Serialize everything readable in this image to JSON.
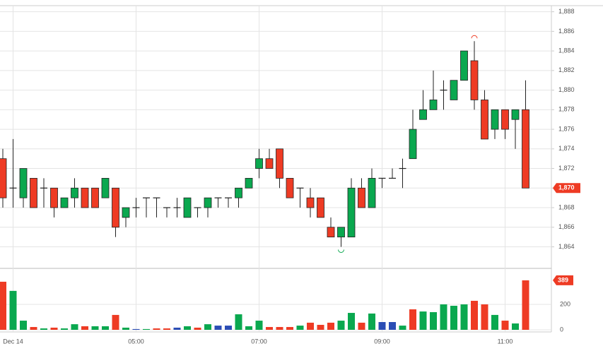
{
  "chart_data": {
    "type": "candlestick",
    "x": [
      null,
      "Dec 14",
      null,
      null,
      null,
      null,
      null,
      null,
      null,
      null,
      null,
      null,
      null,
      "05:00",
      null,
      null,
      null,
      null,
      null,
      null,
      null,
      null,
      null,
      null,
      null,
      "07:00",
      null,
      null,
      null,
      null,
      null,
      null,
      null,
      null,
      null,
      null,
      null,
      "09:00",
      null,
      null,
      null,
      null,
      null,
      null,
      null,
      null,
      null,
      null,
      null,
      "11:00",
      null,
      null
    ],
    "open": [
      1873,
      1870,
      1869,
      1871,
      1870,
      1870,
      1868,
      1869,
      1870,
      1870,
      1869,
      1870,
      1867,
      1868,
      1869,
      1869,
      1868,
      1868,
      1867,
      1868,
      1868,
      1869,
      1869,
      1869,
      1870,
      1872,
      1873,
      1874,
      1871,
      1870,
      1869,
      1869,
      1866,
      1865,
      1865,
      1870,
      1868,
      1871,
      1871,
      1872,
      1873,
      1877,
      1878,
      1880,
      1879,
      1881,
      1883,
      1879,
      1876,
      1878,
      1877,
      1878
    ],
    "high": [
      1874,
      1875,
      1872,
      1871,
      1871,
      1870,
      1869,
      1871,
      1870,
      1870,
      1871,
      1870,
      1868,
      1869,
      1869,
      1869,
      1868,
      1869,
      1869,
      1868,
      1869,
      1869,
      1869,
      1870,
      1871,
      1874,
      1874,
      1874,
      1871,
      1870,
      1870,
      1869,
      1867,
      1866,
      1871,
      1871,
      1872,
      1871,
      1872,
      1873,
      1878,
      1880,
      1882,
      1881,
      1881,
      1884,
      1885,
      1880,
      1878,
      1878,
      1878,
      1881
    ],
    "low": [
      1868,
      1868,
      1868,
      1868,
      1868,
      1867,
      1868,
      1868,
      1868,
      1868,
      1869,
      1865,
      1866,
      1867,
      1867,
      1867,
      1867,
      1867,
      1867,
      1867,
      1867,
      1868,
      1868,
      1868,
      1870,
      1871,
      1872,
      1870,
      1869,
      1868,
      1867,
      1867,
      1865,
      1864,
      1865,
      1868,
      1868,
      1870,
      1871,
      1870,
      1873,
      1877,
      1878,
      1878,
      1879,
      1881,
      1878,
      1875,
      1875,
      1875,
      1874,
      1870
    ],
    "close": [
      1869,
      1870,
      1872,
      1868,
      1870,
      1868,
      1869,
      1870,
      1868,
      1868,
      1871,
      1866,
      1868,
      1868,
      1869,
      1869,
      1868,
      1868,
      1869,
      1868,
      1869,
      1869,
      1869,
      1870,
      1871,
      1873,
      1872,
      1871,
      1869,
      1870,
      1868,
      1867,
      1865,
      1866,
      1870,
      1868,
      1871,
      1871,
      1871,
      1872,
      1876,
      1878,
      1879,
      1880,
      1881,
      1884,
      1879,
      1875,
      1878,
      1876,
      1878,
      1870
    ],
    "last_label": "1,870",
    "up_color": "#0aa84f",
    "down_color": "#ee3b24",
    "flat_color": "#222222",
    "ylim": [
      1861.8,
      1889.2
    ],
    "yticks": [
      {
        "value": 1864,
        "label": "1,864"
      },
      {
        "value": 1866,
        "label": "1,866"
      },
      {
        "value": 1868,
        "label": "1,868"
      },
      {
        "value": 1870,
        "label": "1,870"
      },
      {
        "value": 1872,
        "label": "1,872"
      },
      {
        "value": 1874,
        "label": "1,874"
      },
      {
        "value": 1876,
        "label": "1,876"
      },
      {
        "value": 1878,
        "label": "1,878"
      },
      {
        "value": 1880,
        "label": "1,880"
      },
      {
        "value": 1882,
        "label": "1,882"
      },
      {
        "value": 1884,
        "label": "1,884"
      },
      {
        "value": 1886,
        "label": "1,886"
      },
      {
        "value": 1888,
        "label": "1,888"
      }
    ],
    "volume": {
      "values": [
        378,
        306,
        72,
        22,
        11,
        17,
        11,
        44,
        28,
        28,
        28,
        117,
        17,
        6,
        6,
        11,
        11,
        17,
        28,
        17,
        44,
        33,
        33,
        122,
        28,
        72,
        22,
        22,
        22,
        33,
        56,
        39,
        56,
        72,
        133,
        56,
        128,
        61,
        61,
        33,
        161,
        144,
        139,
        200,
        189,
        200,
        228,
        200,
        117,
        72,
        50,
        389
      ],
      "colors": [
        "#ee3b24",
        "#0aa84f",
        "#0aa84f",
        "#ee3b24",
        "#0aa84f",
        "#ee3b24",
        "#0aa84f",
        "#0aa84f",
        "#ee3b24",
        "#0aa84f",
        "#0aa84f",
        "#ee3b24",
        "#0aa84f",
        "#2b4db5",
        "#0aa84f",
        "#ee3b24",
        "#ee3b24",
        "#2b4db5",
        "#0aa84f",
        "#ee3b24",
        "#0aa84f",
        "#2b4db5",
        "#2b4db5",
        "#0aa84f",
        "#0aa84f",
        "#0aa84f",
        "#ee3b24",
        "#ee3b24",
        "#ee3b24",
        "#0aa84f",
        "#ee3b24",
        "#ee3b24",
        "#ee3b24",
        "#0aa84f",
        "#0aa84f",
        "#ee3b24",
        "#0aa84f",
        "#2b4db5",
        "#2b4db5",
        "#0aa84f",
        "#ee3b24",
        "#0aa84f",
        "#0aa84f",
        "#0aa84f",
        "#0aa84f",
        "#0aa84f",
        "#ee3b24",
        "#ee3b24",
        "#0aa84f",
        "#ee3b24",
        "#0aa84f",
        "#ee3b24"
      ],
      "ylim": [
        0,
        483
      ],
      "yticks": [
        0,
        200
      ]
    },
    "grid": true
  }
}
